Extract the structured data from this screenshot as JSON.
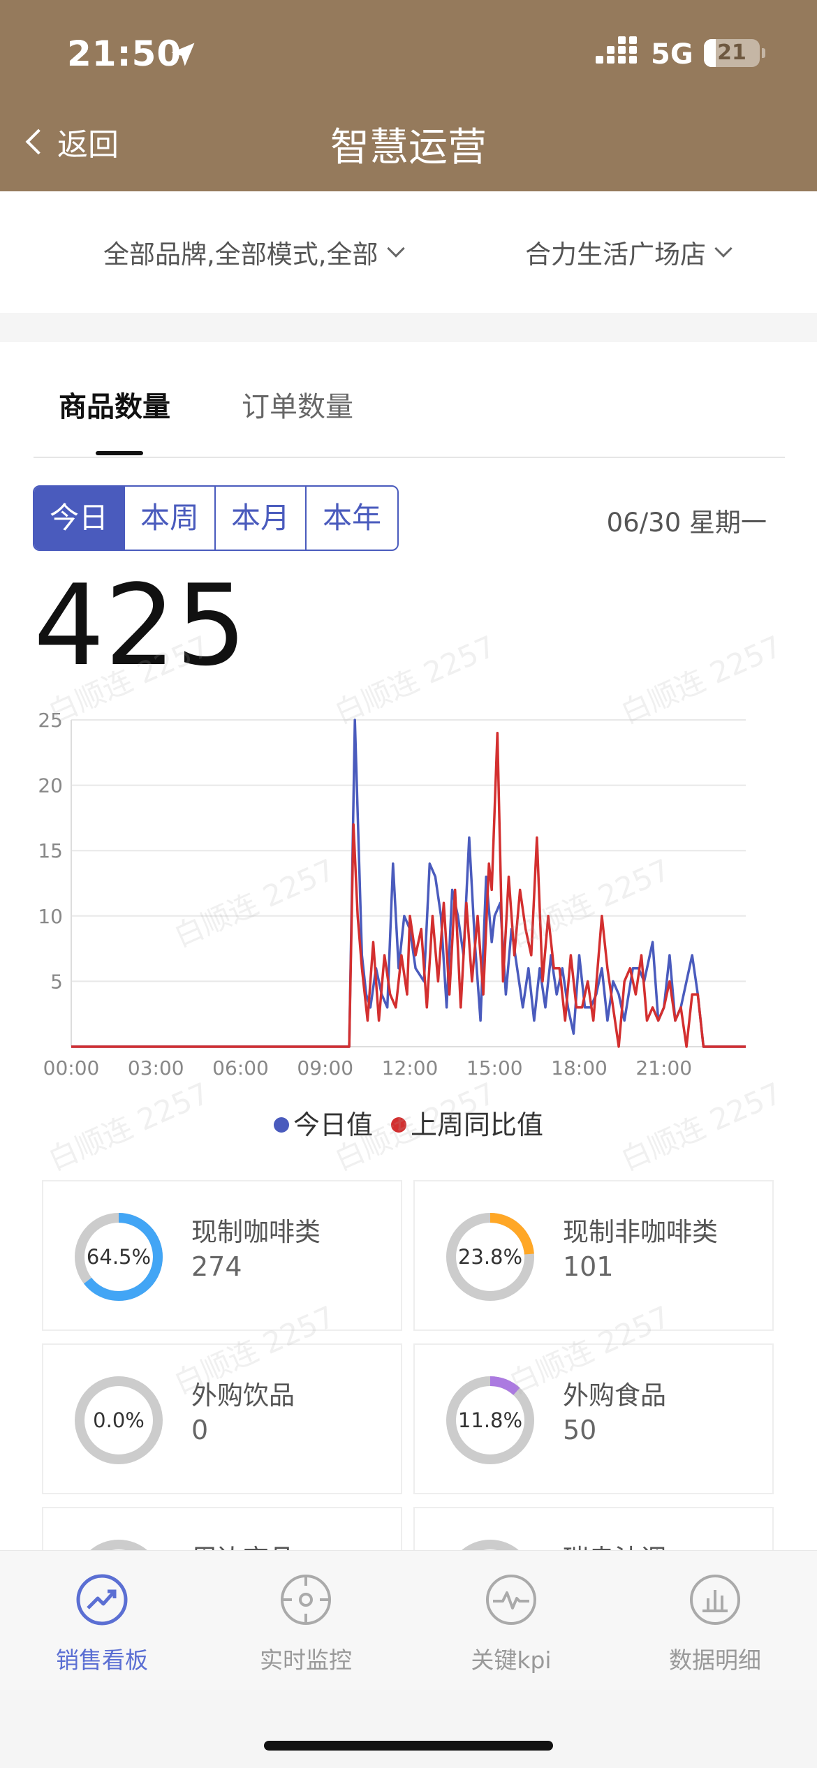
{
  "status_bar": {
    "time": "21:50",
    "network": "5G",
    "battery": "21",
    "battery_level": 0.21
  },
  "header": {
    "back_label": "返回",
    "title": "智慧运营"
  },
  "filters": {
    "brand": "全部品牌,全部模式,全部",
    "store": "合力生活广场店"
  },
  "tabs": [
    {
      "label": "商品数量",
      "active": true
    },
    {
      "label": "订单数量",
      "active": false
    }
  ],
  "periods": [
    {
      "label": "今日",
      "active": true
    },
    {
      "label": "本周",
      "active": false
    },
    {
      "label": "本月",
      "active": false
    },
    {
      "label": "本年",
      "active": false
    }
  ],
  "date_label": "06/30 星期一",
  "total": "425",
  "chart_data": {
    "type": "line",
    "y_ticks": [
      "25",
      "20",
      "15",
      "10",
      "5"
    ],
    "x_ticks": [
      "00:00",
      "03:00",
      "06:00",
      "09:00",
      "12:00",
      "15:00",
      "18:00",
      "21:00"
    ],
    "ylim": [
      0,
      25
    ],
    "xlim": [
      0,
      23.9
    ],
    "grid": true,
    "legend_position": "bottom",
    "series": [
      {
        "name": "今日值",
        "color": "#4a5bbd",
        "points": [
          [
            0,
            0
          ],
          [
            9.85,
            0
          ],
          [
            10.05,
            25
          ],
          [
            10.3,
            7
          ],
          [
            10.45,
            4
          ],
          [
            10.6,
            3
          ],
          [
            10.8,
            6
          ],
          [
            11.0,
            4
          ],
          [
            11.2,
            3
          ],
          [
            11.4,
            14
          ],
          [
            11.6,
            6
          ],
          [
            11.8,
            10
          ],
          [
            12.0,
            9
          ],
          [
            12.2,
            6
          ],
          [
            12.5,
            5
          ],
          [
            12.7,
            14
          ],
          [
            12.9,
            13
          ],
          [
            13.1,
            10
          ],
          [
            13.3,
            3
          ],
          [
            13.5,
            12
          ],
          [
            13.7,
            10
          ],
          [
            13.9,
            7
          ],
          [
            14.1,
            16
          ],
          [
            14.3,
            8
          ],
          [
            14.5,
            2
          ],
          [
            14.7,
            13
          ],
          [
            14.9,
            8
          ],
          [
            15.0,
            10
          ],
          [
            15.2,
            11
          ],
          [
            15.4,
            4
          ],
          [
            15.6,
            9
          ],
          [
            15.8,
            6
          ],
          [
            16.0,
            3
          ],
          [
            16.2,
            6
          ],
          [
            16.4,
            2
          ],
          [
            16.6,
            6
          ],
          [
            16.8,
            3
          ],
          [
            17.0,
            7
          ],
          [
            17.2,
            4
          ],
          [
            17.4,
            6
          ],
          [
            17.6,
            3
          ],
          [
            17.8,
            1
          ],
          [
            18.0,
            7
          ],
          [
            18.2,
            3
          ],
          [
            18.4,
            3
          ],
          [
            18.6,
            4
          ],
          [
            18.8,
            6
          ],
          [
            19.0,
            2
          ],
          [
            19.2,
            5
          ],
          [
            19.4,
            4
          ],
          [
            19.6,
            2
          ],
          [
            19.9,
            6
          ],
          [
            20.1,
            6
          ],
          [
            20.3,
            5
          ],
          [
            20.6,
            8
          ],
          [
            20.8,
            2
          ],
          [
            21.0,
            3
          ],
          [
            21.2,
            7
          ],
          [
            21.4,
            2
          ],
          [
            21.6,
            3
          ],
          [
            21.8,
            5
          ],
          [
            22.0,
            7
          ],
          [
            22.2,
            4
          ],
          [
            22.4,
            0
          ],
          [
            23.9,
            0
          ]
        ]
      },
      {
        "name": "上周同比值",
        "color": "#d32f2f",
        "points": [
          [
            0,
            0
          ],
          [
            9.85,
            0
          ],
          [
            10.0,
            17
          ],
          [
            10.15,
            10
          ],
          [
            10.3,
            6
          ],
          [
            10.5,
            2
          ],
          [
            10.7,
            8
          ],
          [
            10.9,
            2
          ],
          [
            11.1,
            7
          ],
          [
            11.3,
            4
          ],
          [
            11.5,
            3
          ],
          [
            11.7,
            7
          ],
          [
            11.9,
            4
          ],
          [
            12.0,
            10
          ],
          [
            12.2,
            7
          ],
          [
            12.4,
            9
          ],
          [
            12.6,
            3
          ],
          [
            12.8,
            10
          ],
          [
            13.0,
            5
          ],
          [
            13.2,
            11
          ],
          [
            13.4,
            4
          ],
          [
            13.6,
            12
          ],
          [
            13.8,
            3
          ],
          [
            14.0,
            11
          ],
          [
            14.2,
            5
          ],
          [
            14.4,
            10
          ],
          [
            14.6,
            4
          ],
          [
            14.8,
            14
          ],
          [
            14.9,
            12
          ],
          [
            15.1,
            24
          ],
          [
            15.3,
            5
          ],
          [
            15.5,
            13
          ],
          [
            15.7,
            7
          ],
          [
            15.9,
            12
          ],
          [
            16.1,
            9
          ],
          [
            16.3,
            7
          ],
          [
            16.5,
            16
          ],
          [
            16.7,
            5
          ],
          [
            16.9,
            10
          ],
          [
            17.1,
            6
          ],
          [
            17.3,
            6
          ],
          [
            17.5,
            2
          ],
          [
            17.7,
            7
          ],
          [
            17.9,
            3
          ],
          [
            18.1,
            3
          ],
          [
            18.3,
            5
          ],
          [
            18.5,
            2
          ],
          [
            18.8,
            10
          ],
          [
            19.0,
            6
          ],
          [
            19.2,
            3
          ],
          [
            19.4,
            0
          ],
          [
            19.6,
            5
          ],
          [
            19.8,
            6
          ],
          [
            20.0,
            4
          ],
          [
            20.2,
            7
          ],
          [
            20.4,
            2
          ],
          [
            20.6,
            3
          ],
          [
            20.8,
            2
          ],
          [
            21.0,
            3
          ],
          [
            21.2,
            5
          ],
          [
            21.4,
            2
          ],
          [
            21.6,
            3
          ],
          [
            21.8,
            0
          ],
          [
            22.0,
            4
          ],
          [
            22.2,
            4
          ],
          [
            22.4,
            0
          ],
          [
            23.9,
            0
          ]
        ]
      }
    ]
  },
  "legend": {
    "today": "今日值",
    "last_week": "上周同比值"
  },
  "categories": [
    {
      "name": "现制咖啡类",
      "value": "274",
      "percent": "64.5%",
      "fraction": 0.645,
      "color": "#42a5f5"
    },
    {
      "name": "现制非咖啡类",
      "value": "101",
      "percent": "23.8%",
      "fraction": 0.238,
      "color": "#ffa726"
    },
    {
      "name": "外购饮品",
      "value": "0",
      "percent": "0.0%",
      "fraction": 0.0,
      "color": "#cccccc"
    },
    {
      "name": "外购食品",
      "value": "50",
      "percent": "11.8%",
      "fraction": 0.118,
      "color": "#ab7ae0"
    },
    {
      "name": "周边商品",
      "value": "",
      "percent": "",
      "fraction": 0,
      "color": "#cccccc"
    },
    {
      "name": "瑞幸油调",
      "value": "",
      "percent": "",
      "fraction": 0,
      "color": "#cccccc"
    }
  ],
  "tabbar": [
    {
      "label": "销售看板",
      "icon": "trend-icon",
      "active": true
    },
    {
      "label": "实时监控",
      "icon": "target-icon",
      "active": false
    },
    {
      "label": "关键kpi",
      "icon": "pulse-icon",
      "active": false
    },
    {
      "label": "数据明细",
      "icon": "bar-chart-icon",
      "active": false
    }
  ],
  "watermark": "白顺连 2257"
}
